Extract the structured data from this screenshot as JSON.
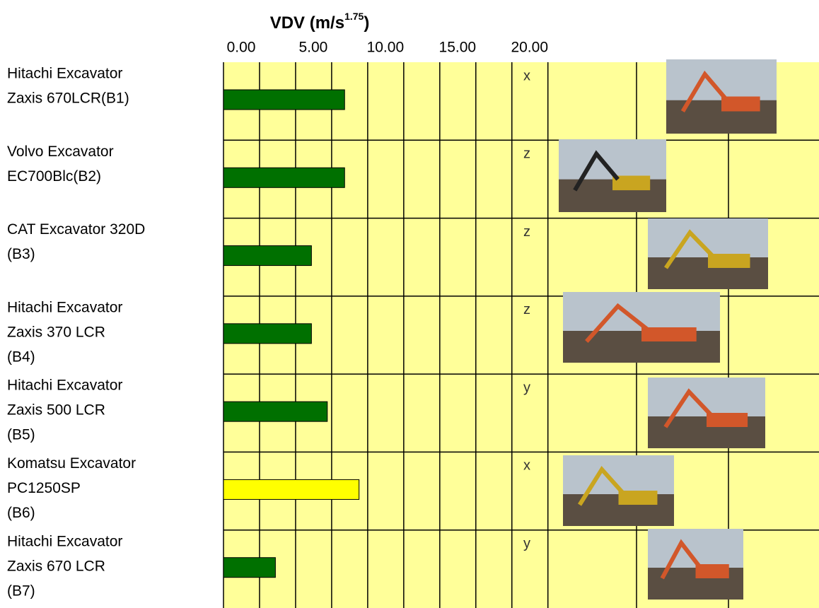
{
  "chart_data": {
    "type": "bar",
    "orientation": "horizontal",
    "title": "VDV (m/s",
    "title_superscript": "1.75",
    "title_end": ")",
    "categories": [
      [
        "Hitachi Excavator",
        "Zaxis 670LCR(B1)"
      ],
      [
        "Volvo Excavator",
        "EC700Blc(B2)"
      ],
      [
        "CAT Excavator 320D",
        "(B3)"
      ],
      [
        "Hitachi Excavator",
        "Zaxis 370 LCR",
        "(B4)"
      ],
      [
        "Hitachi Excavator",
        "Zaxis 500 LCR",
        "(B5)"
      ],
      [
        "Komatsu Excavator",
        "PC1250SP",
        "(B6)"
      ],
      [
        "Hitachi Excavator",
        "Zaxis 670 LCR",
        "(B7)"
      ]
    ],
    "values": [
      8.4,
      8.4,
      6.1,
      6.1,
      7.2,
      9.4,
      3.6
    ],
    "colors": [
      "#007000",
      "#007000",
      "#007000",
      "#007000",
      "#007000",
      "#ffff00",
      "#007000"
    ],
    "axis_annotations": [
      "x",
      "z",
      "z",
      "z",
      "y",
      "x",
      "y"
    ],
    "xlim": [
      0,
      41.3
    ],
    "xticks": [
      {
        "value": 0,
        "label": "0.00"
      },
      {
        "value": 5,
        "label": "5.00"
      },
      {
        "value": 10,
        "label": "10.00"
      },
      {
        "value": 15,
        "label": "15.00"
      },
      {
        "value": 20,
        "label": "20.00"
      }
    ],
    "grid": true,
    "background": "#ffff99"
  }
}
